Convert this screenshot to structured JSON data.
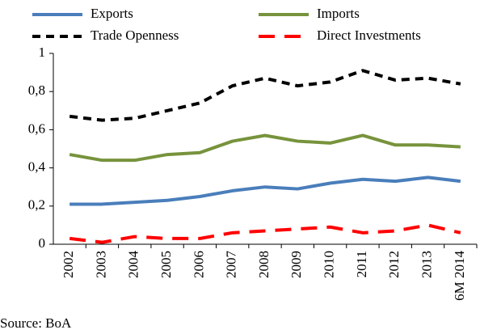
{
  "chart_data": {
    "type": "line",
    "categories": [
      "2002",
      "2003",
      "2004",
      "2005",
      "2006",
      "2007",
      "2008",
      "2009",
      "2010",
      "2011",
      "2012",
      "2013",
      "6M 2014"
    ],
    "series": [
      {
        "name": "Exports",
        "color": "#4a7ebb",
        "dash": "solid",
        "values": [
          0.21,
          0.21,
          0.22,
          0.23,
          0.25,
          0.28,
          0.3,
          0.29,
          0.32,
          0.34,
          0.33,
          0.35,
          0.33
        ]
      },
      {
        "name": "Imports",
        "color": "#77933c",
        "dash": "solid",
        "values": [
          0.47,
          0.44,
          0.44,
          0.47,
          0.48,
          0.54,
          0.57,
          0.54,
          0.53,
          0.57,
          0.52,
          0.52,
          0.51
        ]
      },
      {
        "name": "Trade Openness",
        "color": "#000000",
        "dash": "dashed",
        "values": [
          0.67,
          0.65,
          0.66,
          0.7,
          0.74,
          0.83,
          0.87,
          0.83,
          0.85,
          0.91,
          0.86,
          0.87,
          0.84
        ]
      },
      {
        "name": "Direct Investments",
        "color": "#ff0000",
        "dash": "longdash",
        "values": [
          0.03,
          0.01,
          0.04,
          0.03,
          0.03,
          0.06,
          0.07,
          0.08,
          0.09,
          0.06,
          0.07,
          0.1,
          0.06
        ]
      }
    ],
    "ylim": [
      0,
      1
    ],
    "yticks": [
      0,
      {
        "value": 0.2,
        "label": "0,2"
      },
      {
        "value": 0.4,
        "label": "0,4"
      },
      {
        "value": 0.6,
        "label": "0,6"
      },
      {
        "value": 0.8,
        "label": "0,8"
      },
      1
    ],
    "grid": false,
    "legend": "top",
    "source": "Source: BoA"
  }
}
